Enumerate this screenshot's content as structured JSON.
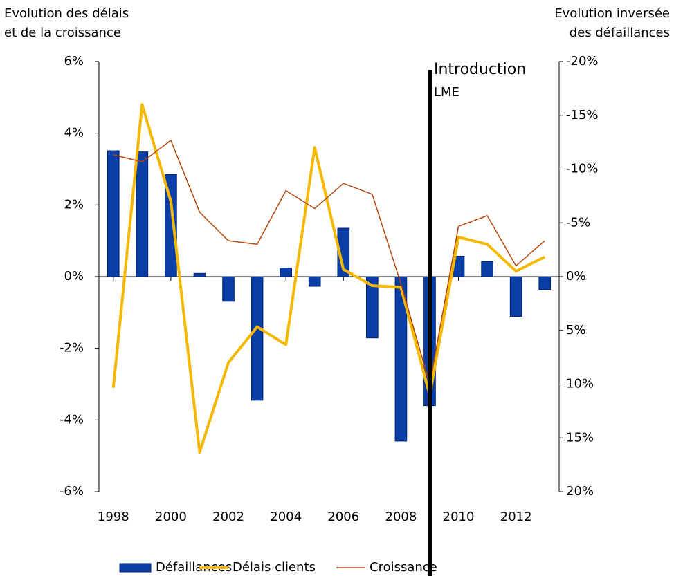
{
  "chart_data": {
    "type": "bar_line",
    "y_label": [
      "Evolution des délais",
      "et de la croissance"
    ],
    "y2_label": [
      "Evolution inversée",
      "des défaillances"
    ],
    "annotation": {
      "text": [
        "Introduction",
        "LME"
      ],
      "x": 2009
    },
    "x": [
      1998,
      1999,
      2000,
      2001,
      2002,
      2003,
      2004,
      2005,
      2006,
      2007,
      2008,
      2009,
      2010,
      2011,
      2012,
      2013
    ],
    "xlim": [
      1997.5,
      2013.5
    ],
    "xticks": [
      1998,
      2000,
      2002,
      2004,
      2006,
      2008,
      2010,
      2012
    ],
    "ylim": [
      -6,
      6
    ],
    "yticks": [
      {
        "value": -6,
        "label": "-6%"
      },
      {
        "value": -4,
        "label": "-4%"
      },
      {
        "value": -2,
        "label": "-2%"
      },
      {
        "value": 0,
        "label": "0%"
      },
      {
        "value": 2,
        "label": "2%"
      },
      {
        "value": 4,
        "label": "4%"
      },
      {
        "value": 6,
        "label": "6%"
      }
    ],
    "y2lim": [
      20,
      -20
    ],
    "y2ticks": [
      {
        "value": 20,
        "label": "20%"
      },
      {
        "value": 15,
        "label": "15%"
      },
      {
        "value": 10,
        "label": "10%"
      },
      {
        "value": 5,
        "label": "5%"
      },
      {
        "value": 0,
        "label": "0%"
      },
      {
        "value": -5,
        "label": "-5%"
      },
      {
        "value": -10,
        "label": "-10%"
      },
      {
        "value": -15,
        "label": "-15%"
      },
      {
        "value": -20,
        "label": "-20%"
      }
    ],
    "series": [
      {
        "name": "Défaillances",
        "kind": "bar",
        "axis": "y2",
        "color": "#0b3fa8",
        "values": [
          -11.7,
          -11.6,
          -9.5,
          -0.3,
          2.3,
          11.5,
          -0.8,
          0.9,
          -4.5,
          5.7,
          15.3,
          12.0,
          -1.9,
          -1.4,
          3.7,
          1.2
        ]
      },
      {
        "name": "Délais clients",
        "kind": "line",
        "color": "#f5b800",
        "values": [
          -3.1,
          4.8,
          2.1,
          -4.9,
          -2.4,
          -1.4,
          -1.9,
          3.6,
          0.2,
          -0.25,
          -0.3,
          -3.3,
          1.1,
          0.9,
          0.15,
          0.55
        ]
      },
      {
        "name": "Croissance",
        "kind": "line",
        "color": "#b5470f",
        "values": [
          3.4,
          3.2,
          3.8,
          1.8,
          1.0,
          0.9,
          2.4,
          1.9,
          2.6,
          2.3,
          -0.2,
          -3.0,
          1.4,
          1.7,
          0.3,
          1.0
        ]
      }
    ]
  }
}
